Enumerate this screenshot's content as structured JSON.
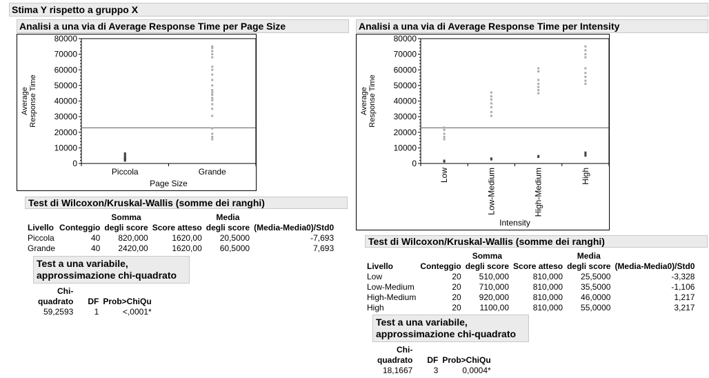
{
  "main_title": "Stima Y rispetto a gruppo X",
  "left": {
    "title": "Analisi a una via di Average Response Time per Page Size",
    "chart_data": {
      "type": "scatter",
      "xlabel": "Page Size",
      "ylabel_line1": "Average",
      "ylabel_line2": "Response Time",
      "categories": [
        "Piccola",
        "Grande"
      ],
      "yticks": [
        "80000",
        "70000",
        "60000",
        "50000",
        "40000",
        "30000",
        "20000",
        "10000",
        "0"
      ],
      "ylim": [
        0,
        80000
      ],
      "grand_mean": 22900,
      "points": [
        {
          "category": "Piccola",
          "values": [
            1800,
            2400,
            3000,
            3500,
            4200,
            5000,
            5800,
            6500,
            2800,
            3200
          ]
        },
        {
          "category": "Grande",
          "values": [
            15500,
            17000,
            19000,
            22500,
            30500,
            35000,
            38000,
            40500,
            42000,
            44000,
            45500,
            47000,
            50000,
            53500,
            57000,
            60000,
            62000,
            68000,
            70000,
            72000,
            74000,
            75000
          ]
        }
      ]
    },
    "test_title": "Test di Wilcoxon/Kruskal-Wallis (somme dei ranghi)",
    "columns": {
      "livello": "Livello",
      "conteggio": "Conteggio",
      "somma1": "Somma",
      "somma2": "degli score",
      "atteso": "Score atteso",
      "media1": "Media",
      "media2": "degli score",
      "std": "(Media-Media0)/Std0"
    },
    "rows": [
      {
        "livello": "Piccola",
        "conteggio": "40",
        "somma": "820,000",
        "atteso": "1620,00",
        "media": "20,5000",
        "std": "-7,693"
      },
      {
        "livello": "Grande",
        "conteggio": "40",
        "somma": "2420,00",
        "atteso": "1620,00",
        "media": "60,5000",
        "std": "7,693"
      }
    ],
    "chi_title_line1": "Test a una variabile,",
    "chi_title_line2": "approssimazione chi-quadrato",
    "chi_cols": {
      "chi1": "Chi-",
      "chi2": "quadrato",
      "df": "DF",
      "prob": "Prob>ChiQu"
    },
    "chi_row": {
      "chi": "59,2593",
      "df": "1",
      "prob": "<,0001*"
    }
  },
  "right": {
    "title": "Analisi a una via di Average Response Time per Intensity",
    "chart_data": {
      "type": "scatter",
      "xlabel": "Intensity",
      "ylabel_line1": "Average",
      "ylabel_line2": "Response Time",
      "categories": [
        "Low",
        "Low-Medium",
        "High-Medium",
        "High"
      ],
      "yticks": [
        "80000",
        "70000",
        "60000",
        "50000",
        "40000",
        "30000",
        "20000",
        "10000",
        "0"
      ],
      "ylim": [
        0,
        80000
      ],
      "grand_mean": 22900,
      "points": [
        {
          "category": "Low",
          "values": [
            1200,
            1800,
            15500,
            17000,
            19000,
            21500,
            23000
          ]
        },
        {
          "category": "Low-Medium",
          "values": [
            2600,
            3200,
            30500,
            33000,
            36000,
            38500,
            41000,
            43000,
            45500
          ]
        },
        {
          "category": "High-Medium",
          "values": [
            4200,
            4800,
            45000,
            47000,
            49000,
            51000,
            53500,
            59000,
            61000
          ]
        },
        {
          "category": "High",
          "values": [
            5000,
            6000,
            7000,
            51000,
            53000,
            55500,
            58000,
            61000,
            68000,
            70000,
            72500,
            75000
          ]
        }
      ]
    },
    "test_title": "Test di Wilcoxon/Kruskal-Wallis (somme dei ranghi)",
    "columns": {
      "livello": "Livello",
      "conteggio": "Conteggio",
      "somma1": "Somma",
      "somma2": "degli score",
      "atteso": "Score atteso",
      "media1": "Media",
      "media2": "degli score",
      "std": "(Media-Media0)/Std0"
    },
    "rows": [
      {
        "livello": "Low",
        "conteggio": "20",
        "somma": "510,000",
        "atteso": "810,000",
        "media": "25,5000",
        "std": "-3,328"
      },
      {
        "livello": "Low-Medium",
        "conteggio": "20",
        "somma": "710,000",
        "atteso": "810,000",
        "media": "35,5000",
        "std": "-1,106"
      },
      {
        "livello": "High-Medium",
        "conteggio": "20",
        "somma": "920,000",
        "atteso": "810,000",
        "media": "46,0000",
        "std": "1,217"
      },
      {
        "livello": "High",
        "conteggio": "20",
        "somma": "1100,00",
        "atteso": "810,000",
        "media": "55,0000",
        "std": "3,217"
      }
    ],
    "chi_title_line1": "Test a una variabile,",
    "chi_title_line2": "approssimazione chi-quadrato",
    "chi_cols": {
      "chi1": "Chi-",
      "chi2": "quadrato",
      "df": "DF",
      "prob": "Prob>ChiQu"
    },
    "chi_row": {
      "chi": "18,1667",
      "df": "3",
      "prob": "0,0004*"
    }
  }
}
